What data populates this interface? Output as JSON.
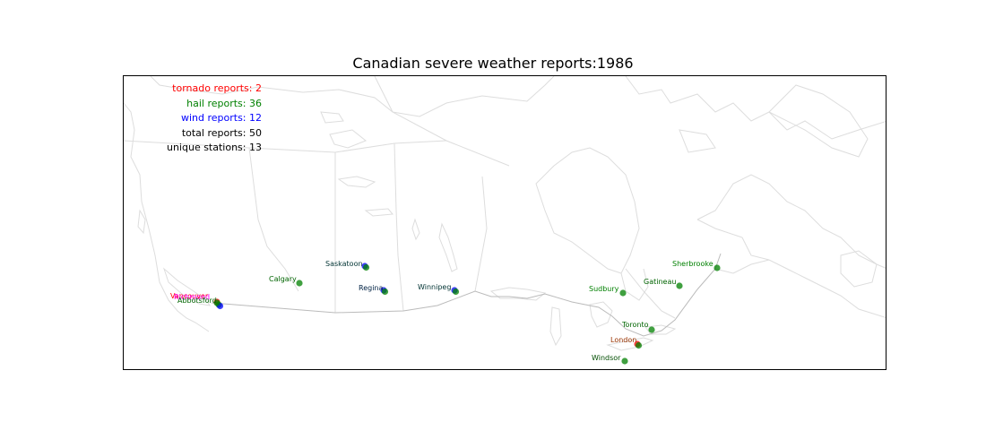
{
  "title": "Canadian severe weather reports:1986",
  "stats": [
    {
      "text": "tornado reports: 2",
      "color": "#ff0000"
    },
    {
      "text": "hail reports: 36",
      "color": "#008000"
    },
    {
      "text": "wind reports: 12",
      "color": "#0000ff"
    },
    {
      "text": "total reports: 50",
      "color": "#000000"
    },
    {
      "text": "unique stations: 13",
      "color": "#000000"
    }
  ],
  "colors": {
    "tornado": "#ff0000",
    "hail": "#008000",
    "wind": "#0000ff",
    "coastline": "#dddddd",
    "border": "#bbbbbb"
  },
  "stations": [
    {
      "name": "Vancouver",
      "label_color": "#ff0000",
      "types": [
        "tornado"
      ]
    },
    {
      "name": "Richmond",
      "label_color": "#ff00ff",
      "types": [
        "hail",
        "wind"
      ]
    },
    {
      "name": "Abbotsford",
      "label_color": "#006400",
      "types": [
        "hail"
      ]
    },
    {
      "name": "Calgary",
      "label_color": "#006400",
      "types": [
        "hail"
      ]
    },
    {
      "name": "Saskatoon",
      "label_color": "#003333",
      "types": [
        "wind",
        "hail"
      ]
    },
    {
      "name": "Regina",
      "label_color": "#002244",
      "types": [
        "wind",
        "hail"
      ]
    },
    {
      "name": "Winnipeg",
      "label_color": "#003333",
      "types": [
        "wind",
        "hail"
      ]
    },
    {
      "name": "Sudbury",
      "label_color": "#008000",
      "types": [
        "hail"
      ]
    },
    {
      "name": "Gatineau",
      "label_color": "#006400",
      "types": [
        "hail"
      ]
    },
    {
      "name": "Sherbrooke",
      "label_color": "#008000",
      "types": [
        "hail"
      ]
    },
    {
      "name": "Toronto",
      "label_color": "#006400",
      "types": [
        "hail"
      ]
    },
    {
      "name": "London",
      "label_color": "#993300",
      "types": [
        "tornado",
        "hail"
      ]
    },
    {
      "name": "Windsor",
      "label_color": "#004d00",
      "types": [
        "hail"
      ]
    }
  ]
}
